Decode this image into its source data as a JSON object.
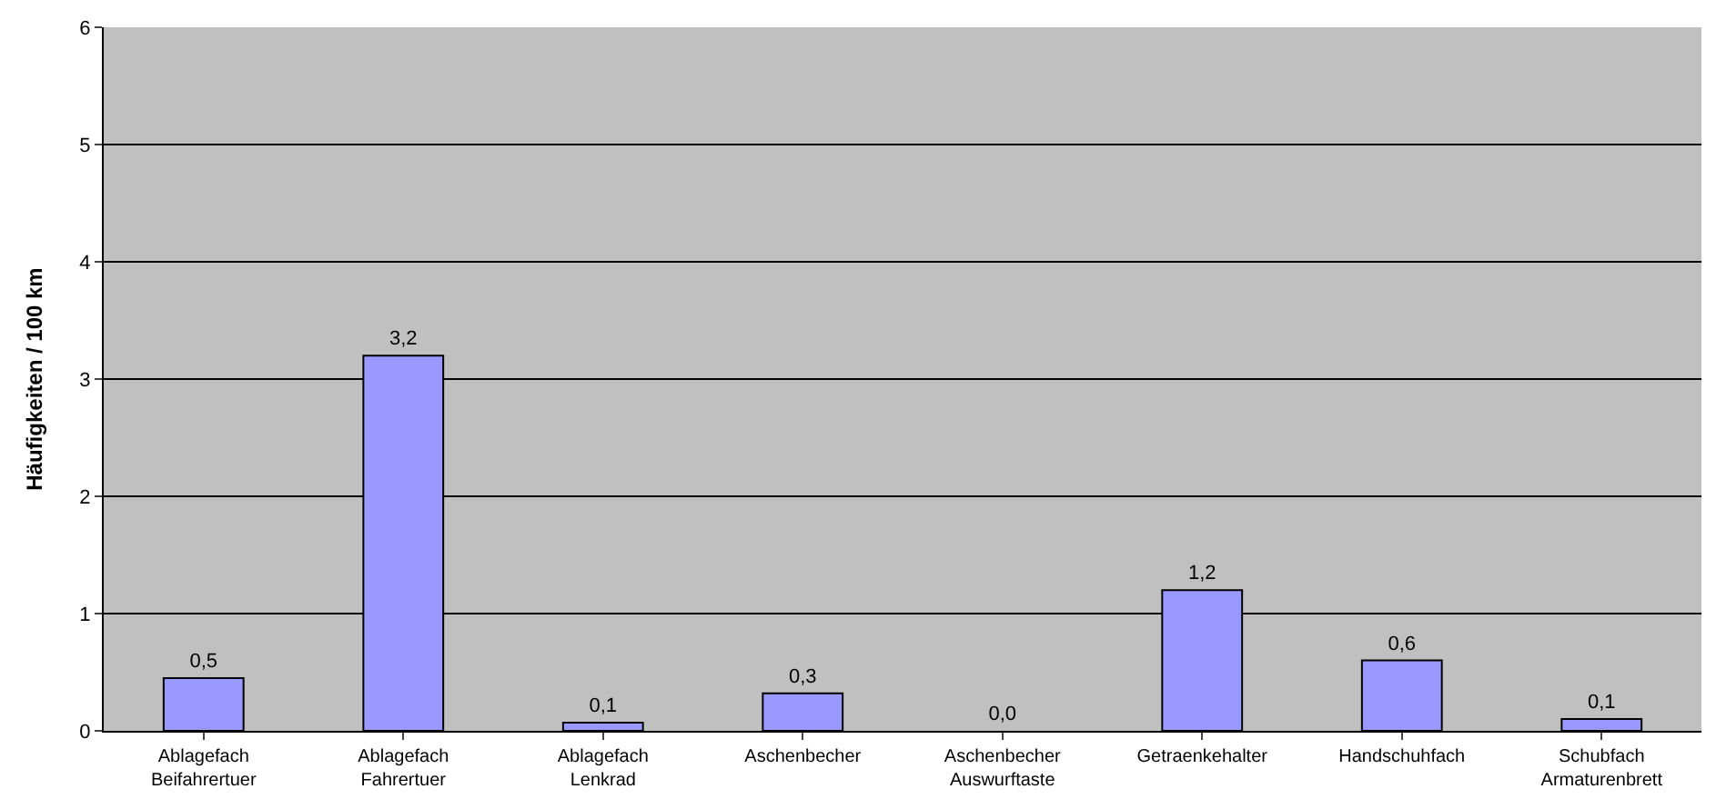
{
  "chart_data": {
    "type": "bar",
    "ylabel": "Häufigkeiten / 100 km",
    "categories": [
      "Ablagefach\nBeifahrertuer",
      "Ablagefach\nFahrertuer",
      "Ablagefach\nLenkrad",
      "Aschenbecher",
      "Aschenbecher\nAuswurftaste",
      "Getraenkehalter",
      "Handschuhfach",
      "Schubfach\nArmaturenbrett"
    ],
    "values": [
      0.45,
      3.2,
      0.07,
      0.32,
      0.0,
      1.2,
      0.6,
      0.1
    ],
    "value_labels": [
      "0,5",
      "3,2",
      "0,1",
      "0,3",
      "0,0",
      "1,2",
      "0,6",
      "0,1"
    ],
    "color": "#9999ff",
    "ylim": [
      0,
      6
    ],
    "yticks": [
      0,
      1,
      2,
      3,
      4,
      5,
      6
    ],
    "grid": "y",
    "legend": false
  }
}
